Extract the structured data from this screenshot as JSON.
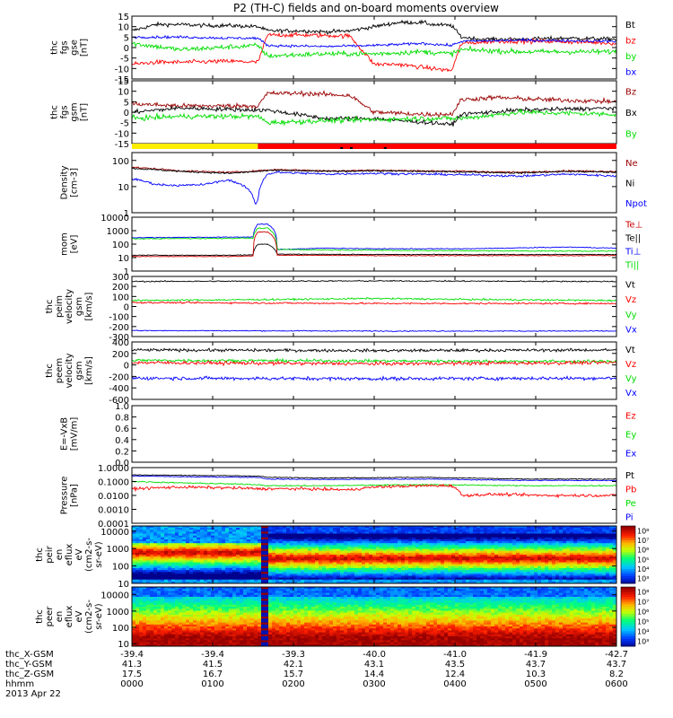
{
  "title": "P2 (TH-C) fields and on-board moments overview",
  "chart_data": [
    {
      "type": "line",
      "ylabel": [
        "thc",
        "fgs",
        "gse",
        "[nT]"
      ],
      "ylim": [
        -15,
        15
      ],
      "yticks": [
        -15,
        -10,
        -5,
        0,
        5,
        10,
        15
      ],
      "legend": [
        {
          "label": "Bt",
          "color": "#000000"
        },
        {
          "label": "bz",
          "color": "#ff0000"
        },
        {
          "label": "by",
          "color": "#00dd00"
        },
        {
          "label": "bx",
          "color": "#0000ff"
        }
      ],
      "series": [
        {
          "name": "Bt",
          "color": "#000000",
          "noise": 0.9,
          "x": [
            0,
            0.05,
            0.1,
            0.15,
            0.2,
            0.26,
            0.28,
            0.35,
            0.4,
            0.45,
            0.55,
            0.6,
            0.62,
            0.66,
            0.68,
            0.72,
            0.8,
            0.9,
            1
          ],
          "y": [
            8,
            11,
            11,
            10.5,
            10.5,
            10,
            8,
            8,
            7.5,
            8,
            12,
            12,
            11,
            10.5,
            5,
            4,
            4,
            4.5,
            4
          ]
        },
        {
          "name": "bz",
          "color": "#ff0000",
          "noise": 1.0,
          "x": [
            0,
            0.05,
            0.1,
            0.2,
            0.26,
            0.28,
            0.35,
            0.45,
            0.5,
            0.55,
            0.62,
            0.66,
            0.68,
            0.75,
            0.85,
            0.95,
            1
          ],
          "y": [
            -8,
            -7,
            -7,
            -6.5,
            -7,
            6,
            6,
            5.5,
            -8,
            -8,
            -10,
            -11,
            2,
            3,
            3,
            2.5,
            2
          ]
        },
        {
          "name": "by",
          "color": "#00dd00",
          "noise": 1.2,
          "x": [
            0,
            0.1,
            0.26,
            0.28,
            0.4,
            0.5,
            0.6,
            0.66,
            0.68,
            0.8,
            1
          ],
          "y": [
            2,
            -1,
            1,
            -4,
            -3,
            -3,
            -2,
            -3,
            -1,
            -2,
            -2
          ]
        },
        {
          "name": "bx",
          "color": "#0000ff",
          "noise": 0.6,
          "x": [
            0,
            0.1,
            0.2,
            0.26,
            0.28,
            0.4,
            0.5,
            0.6,
            0.66,
            0.68,
            0.8,
            1
          ],
          "y": [
            5,
            5,
            4.5,
            4.5,
            1,
            0.5,
            1,
            2,
            1,
            3,
            3.5,
            3
          ]
        }
      ]
    },
    {
      "type": "line",
      "ylabel": [
        "thc",
        "fgs",
        "gsm",
        "[nT]"
      ],
      "ylim": [
        -15,
        15
      ],
      "yticks": [
        -15,
        -10,
        -5,
        0,
        5,
        10,
        15
      ],
      "legend": [
        {
          "label": "Bz",
          "color": "#990000"
        },
        {
          "label": "Bx",
          "color": "#000000"
        },
        {
          "label": "By",
          "color": "#00dd00"
        }
      ],
      "series": [
        {
          "name": "Bz",
          "color": "#990000",
          "noise": 1.1,
          "x": [
            0,
            0.1,
            0.2,
            0.26,
            0.28,
            0.35,
            0.45,
            0.5,
            0.6,
            0.66,
            0.68,
            0.75,
            0.85,
            1
          ],
          "y": [
            4,
            3,
            3,
            3,
            9,
            9,
            8,
            0,
            -1,
            -1,
            6,
            7,
            6,
            5
          ]
        },
        {
          "name": "Bx",
          "color": "#000000",
          "noise": 1.0,
          "x": [
            0,
            0.1,
            0.26,
            0.28,
            0.4,
            0.5,
            0.55,
            0.62,
            0.66,
            0.68,
            0.8,
            1
          ],
          "y": [
            0,
            2,
            1,
            1,
            -3,
            -3,
            -4,
            -5,
            -6,
            -1,
            1,
            2
          ]
        },
        {
          "name": "By",
          "color": "#00dd00",
          "noise": 1.2,
          "x": [
            0,
            0.1,
            0.26,
            0.28,
            0.4,
            0.6,
            0.68,
            0.8,
            1
          ],
          "y": [
            -3,
            -2,
            -2,
            -5,
            -4,
            -3,
            -3,
            0,
            -1
          ]
        }
      ]
    },
    {
      "type": "line",
      "ylabel": [
        "Density",
        "[cm-3]"
      ],
      "yscale": "log",
      "ylim": [
        1,
        200
      ],
      "yticks": [
        1,
        10,
        100
      ],
      "legend": [
        {
          "label": "Ne",
          "color": "#990000"
        },
        {
          "label": "Ni",
          "color": "#000000"
        },
        {
          "label": "Npot",
          "color": "#0000ff"
        }
      ],
      "series": [
        {
          "name": "Ne",
          "color": "#990000",
          "noise": 0.03,
          "x": [
            0,
            0.1,
            0.2,
            0.26,
            0.3,
            0.4,
            0.5,
            0.6,
            0.7,
            0.8,
            0.9,
            1
          ],
          "y": [
            55,
            40,
            35,
            40,
            45,
            40,
            42,
            40,
            38,
            35,
            40,
            38
          ]
        },
        {
          "name": "Ni",
          "color": "#000000",
          "noise": 0.03,
          "x": [
            0,
            0.1,
            0.2,
            0.3,
            0.4,
            0.5,
            0.6,
            0.7,
            0.8,
            0.9,
            1
          ],
          "y": [
            50,
            38,
            32,
            42,
            38,
            40,
            38,
            36,
            33,
            38,
            35
          ]
        },
        {
          "name": "Npot",
          "color": "#0000ff",
          "noise": 0.04,
          "x": [
            0,
            0.05,
            0.1,
            0.15,
            0.2,
            0.24,
            0.255,
            0.26,
            0.28,
            0.3,
            0.4,
            0.5,
            0.6,
            0.7,
            0.8,
            0.9,
            1
          ],
          "y": [
            20,
            12,
            11,
            12,
            18,
            8,
            2,
            3,
            30,
            35,
            30,
            32,
            30,
            28,
            25,
            30,
            25
          ]
        }
      ]
    },
    {
      "type": "line",
      "ylabel": [
        "mom",
        "[eV]"
      ],
      "yscale": "log",
      "ylim": [
        1,
        10000
      ],
      "yticks": [
        1,
        10,
        100,
        1000,
        10000
      ],
      "legend": [
        {
          "label": "Te⊥",
          "color": "#cc0000"
        },
        {
          "label": "Te||",
          "color": "#000000"
        },
        {
          "label": "Ti⊥",
          "color": "#0000ff"
        },
        {
          "label": "Ti||",
          "color": "#00dd00"
        }
      ],
      "series": [
        {
          "name": "Ti⊥",
          "color": "#0000ff",
          "noise": 0.03,
          "x": [
            0,
            0.1,
            0.2,
            0.25,
            0.26,
            0.28,
            0.3,
            0.4,
            0.5,
            0.7,
            0.9,
            1
          ],
          "y": [
            300,
            320,
            330,
            340,
            3000,
            3000,
            40,
            50,
            45,
            45,
            60,
            50
          ]
        },
        {
          "name": "Ti||",
          "color": "#00dd00",
          "noise": 0.04,
          "x": [
            0,
            0.1,
            0.2,
            0.25,
            0.26,
            0.28,
            0.3,
            0.5,
            0.7,
            1
          ],
          "y": [
            250,
            260,
            270,
            280,
            1500,
            1500,
            40,
            35,
            32,
            30
          ]
        },
        {
          "name": "Te||",
          "color": "#000000",
          "noise": 0.03,
          "x": [
            0,
            0.2,
            0.25,
            0.26,
            0.28,
            0.3,
            0.5,
            1
          ],
          "y": [
            15,
            15,
            16,
            100,
            100,
            18,
            17,
            17
          ]
        },
        {
          "name": "Te⊥",
          "color": "#cc0000",
          "noise": 0.03,
          "x": [
            0,
            0.2,
            0.25,
            0.26,
            0.28,
            0.3,
            0.5,
            1
          ],
          "y": [
            12,
            12,
            13,
            800,
            800,
            15,
            14,
            14
          ]
        }
      ]
    },
    {
      "type": "line",
      "ylabel": [
        "thc",
        "peim",
        "velocity",
        "gsm",
        "[km/s]"
      ],
      "ylim": [
        -300,
        300
      ],
      "yticks": [
        -300,
        -200,
        -100,
        0,
        100,
        200,
        300
      ],
      "legend": [
        {
          "label": "Vt",
          "color": "#000000"
        },
        {
          "label": "Vz",
          "color": "#ff0000"
        },
        {
          "label": "Vy",
          "color": "#00dd00"
        },
        {
          "label": "Vx",
          "color": "#0000ff"
        }
      ],
      "series": [
        {
          "name": "Vt",
          "color": "#000000",
          "noise": 6,
          "x": [
            0,
            0.5,
            1
          ],
          "y": [
            250,
            255,
            250
          ]
        },
        {
          "name": "Vy",
          "color": "#00dd00",
          "noise": 8,
          "x": [
            0,
            0.3,
            0.5,
            0.7,
            1
          ],
          "y": [
            60,
            70,
            80,
            70,
            60
          ]
        },
        {
          "name": "Vz",
          "color": "#ff0000",
          "noise": 8,
          "x": [
            0,
            0.5,
            1
          ],
          "y": [
            40,
            30,
            30
          ]
        },
        {
          "name": "Vx",
          "color": "#0000ff",
          "noise": 5,
          "x": [
            0,
            0.5,
            1
          ],
          "y": [
            -240,
            -245,
            -245
          ]
        }
      ]
    },
    {
      "type": "line",
      "ylabel": [
        "thc",
        "peem",
        "velocity",
        "gsm",
        "[km/s]"
      ],
      "ylim": [
        -600,
        400
      ],
      "yticks": [
        -600,
        -400,
        -200,
        0,
        200,
        400
      ],
      "legend": [
        {
          "label": "Vt",
          "color": "#000000"
        },
        {
          "label": "Vz",
          "color": "#ff0000"
        },
        {
          "label": "Vy",
          "color": "#00dd00"
        },
        {
          "label": "Vx",
          "color": "#0000ff"
        }
      ],
      "series": [
        {
          "name": "Vt",
          "color": "#000000",
          "noise": 25,
          "x": [
            0,
            0.5,
            1
          ],
          "y": [
            260,
            250,
            260
          ]
        },
        {
          "name": "Vy",
          "color": "#00dd00",
          "noise": 25,
          "x": [
            0,
            0.5,
            1
          ],
          "y": [
            80,
            70,
            60
          ]
        },
        {
          "name": "Vz",
          "color": "#ff0000",
          "noise": 30,
          "x": [
            0,
            0.5,
            1
          ],
          "y": [
            40,
            20,
            40
          ]
        },
        {
          "name": "Vx",
          "color": "#0000ff",
          "noise": 30,
          "x": [
            0,
            0.5,
            1
          ],
          "y": [
            -230,
            -240,
            -230
          ]
        }
      ]
    },
    {
      "type": "line",
      "ylabel": [
        "E=-VxB",
        "[mV/m]"
      ],
      "ylim": [
        0,
        1
      ],
      "yticks": [
        0,
        0.2,
        0.4,
        0.6,
        0.8,
        1
      ],
      "legend": [
        {
          "label": "Ez",
          "color": "#ff0000"
        },
        {
          "label": "Ey",
          "color": "#00dd00"
        },
        {
          "label": "Ex",
          "color": "#0000ff"
        }
      ],
      "series": []
    },
    {
      "type": "line",
      "ylabel": [
        "Pressure",
        "[nPa]"
      ],
      "yscale": "log",
      "ylim": [
        0.0001,
        1
      ],
      "yticks": [
        0.0001,
        0.001,
        0.01,
        0.1,
        1
      ],
      "legend": [
        {
          "label": "Pt",
          "color": "#000000"
        },
        {
          "label": "Pb",
          "color": "#ff0000"
        },
        {
          "label": "Pe",
          "color": "#00dd00"
        },
        {
          "label": "Pi",
          "color": "#0000ff"
        }
      ],
      "series": [
        {
          "name": "Pt",
          "color": "#000000",
          "noise": 0.03,
          "x": [
            0,
            0.1,
            0.26,
            0.28,
            0.4,
            0.6,
            0.8,
            1
          ],
          "y": [
            0.3,
            0.28,
            0.25,
            0.2,
            0.18,
            0.2,
            0.15,
            0.15
          ]
        },
        {
          "name": "Pi",
          "color": "#0000ff",
          "noise": 0.03,
          "x": [
            0,
            0.1,
            0.26,
            0.28,
            0.4,
            0.6,
            0.8,
            1
          ],
          "y": [
            0.25,
            0.22,
            0.2,
            0.15,
            0.14,
            0.15,
            0.12,
            0.12
          ]
        },
        {
          "name": "Pe",
          "color": "#00dd00",
          "noise": 0.04,
          "x": [
            0,
            0.1,
            0.26,
            0.28,
            0.4,
            0.6,
            0.8,
            1
          ],
          "y": [
            0.1,
            0.08,
            0.06,
            0.05,
            0.05,
            0.06,
            0.05,
            0.05
          ]
        },
        {
          "name": "Pb",
          "color": "#ff0000",
          "noise": 0.1,
          "x": [
            0,
            0.1,
            0.2,
            0.26,
            0.28,
            0.35,
            0.45,
            0.5,
            0.55,
            0.62,
            0.66,
            0.68,
            0.75,
            0.85,
            1
          ],
          "y": [
            0.03,
            0.04,
            0.035,
            0.03,
            0.03,
            0.03,
            0.025,
            0.04,
            0.045,
            0.05,
            0.05,
            0.01,
            0.012,
            0.01,
            0.01
          ]
        }
      ]
    },
    {
      "type": "heatmap",
      "ylabel": [
        "thc",
        "peir",
        "en",
        "eflux",
        "eV",
        "(cm2-s-",
        "sr-eV)"
      ],
      "yscale": "log",
      "ylim": [
        10,
        20000
      ],
      "yticks": [
        10,
        100,
        1000,
        10000
      ],
      "colorbar": {
        "labels": [
          "10³",
          "10⁴",
          "10⁵",
          "10⁶",
          "10⁷",
          "10⁸"
        ]
      }
    },
    {
      "type": "heatmap",
      "ylabel": [
        "thc",
        "peer",
        "en",
        "eflux",
        "eV",
        "(cm2-s-",
        "sr-eV)"
      ],
      "yscale": "log",
      "ylim": [
        7,
        30000
      ],
      "yticks": [
        10,
        100,
        1000,
        10000
      ],
      "colorbar": {
        "labels": [
          "10³",
          "10⁴",
          "10⁵",
          "10⁶",
          "10⁷",
          "10⁸"
        ]
      }
    }
  ],
  "xaxis": {
    "rows": [
      {
        "label": "thc_X-GSM",
        "values": [
          "-39.4",
          "-39.4",
          "-39.3",
          "-40.0",
          "-41.0",
          "-41.9",
          "-42.7"
        ]
      },
      {
        "label": "thc_Y-GSM",
        "values": [
          "41.3",
          "41.5",
          "42.1",
          "43.1",
          "43.5",
          "43.7",
          "43.7"
        ]
      },
      {
        "label": "thc_Z-GSM",
        "values": [
          "17.5",
          "16.7",
          "15.7",
          "14.4",
          "12.4",
          "10.3",
          "8.2"
        ]
      },
      {
        "label": "hhmm",
        "values": [
          "0000",
          "0100",
          "0200",
          "0300",
          "0400",
          "0500",
          "0600"
        ]
      }
    ],
    "date": "2013 Apr 22"
  }
}
